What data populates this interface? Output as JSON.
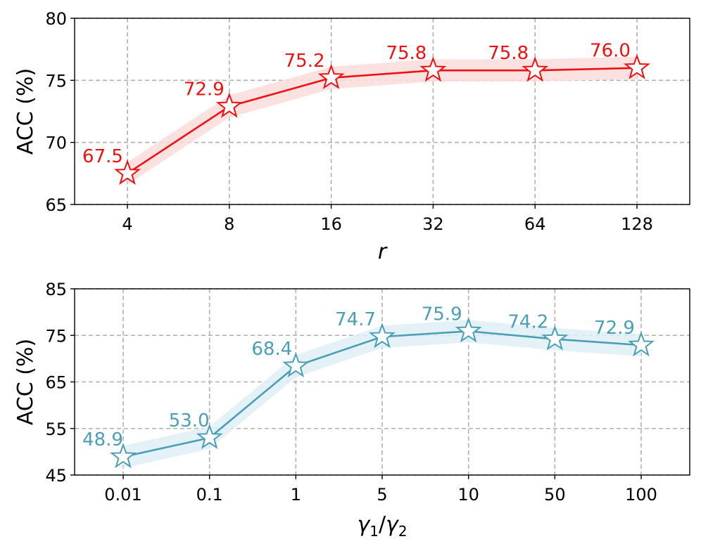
{
  "chart_data": [
    {
      "type": "line",
      "categories": [
        "4",
        "8",
        "16",
        "32",
        "64",
        "128"
      ],
      "series": [
        {
          "values": [
            67.5,
            72.9,
            75.2,
            75.8,
            75.8,
            76.0
          ],
          "data_labels": [
            "67.5",
            "72.9",
            "75.2",
            "75.8",
            "75.8",
            "76.0"
          ]
        }
      ],
      "ylabel": "ACC (%)",
      "xlabel": "r",
      "ylim": [
        65,
        80
      ],
      "yticks": [
        "65",
        "70",
        "75",
        "80"
      ],
      "grid": true,
      "marker": "star",
      "color": "#ee1111",
      "band_color": "#fbdcdc"
    },
    {
      "type": "line",
      "categories": [
        "0.01",
        "0.1",
        "1",
        "5",
        "10",
        "50",
        "100"
      ],
      "series": [
        {
          "values": [
            48.9,
            53.0,
            68.4,
            74.7,
            75.9,
            74.2,
            72.9
          ],
          "data_labels": [
            "48.9",
            "53.0",
            "68.4",
            "74.7",
            "75.9",
            "74.2",
            "72.9"
          ]
        }
      ],
      "ylabel": "ACC (%)",
      "xlabel": "γ1/γ2",
      "ylim": [
        45,
        85
      ],
      "yticks": [
        "45",
        "55",
        "65",
        "75",
        "85"
      ],
      "grid": true,
      "marker": "star",
      "color": "#4a9fb5",
      "band_color": "#dff0f6"
    }
  ]
}
